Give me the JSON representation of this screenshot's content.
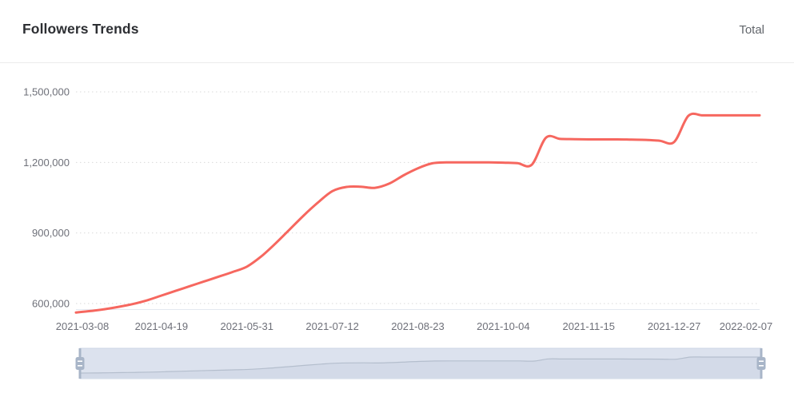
{
  "header": {
    "title": "Followers Trends",
    "right_label": "Total"
  },
  "chart_data": {
    "type": "line",
    "title": "Followers Trends",
    "series": [
      {
        "name": "Total",
        "color": "#f6675f",
        "smooth": true,
        "show_symbols": false,
        "values": [
          562000,
          568000,
          576000,
          586000,
          598000,
          614000,
          634000,
          654000,
          674000,
          694000,
          714000,
          734000,
          757000,
          800000,
          855000,
          915000,
          975000,
          1030000,
          1078000,
          1096000,
          1097000,
          1092000,
          1110000,
          1145000,
          1175000,
          1196000,
          1200000,
          1200000,
          1200000,
          1200000,
          1199000,
          1197000,
          1190000,
          1305000,
          1300000,
          1299000,
          1298000,
          1298000,
          1298000,
          1297000,
          1296000,
          1292000,
          1287000,
          1398000,
          1400000,
          1400000,
          1400000,
          1400000,
          1400000
        ]
      }
    ],
    "x": [
      "2021-03-08",
      "2021-03-15",
      "2021-03-22",
      "2021-03-29",
      "2021-04-05",
      "2021-04-12",
      "2021-04-19",
      "2021-04-26",
      "2021-05-03",
      "2021-05-10",
      "2021-05-17",
      "2021-05-24",
      "2021-05-31",
      "2021-06-07",
      "2021-06-14",
      "2021-06-21",
      "2021-06-28",
      "2021-07-05",
      "2021-07-12",
      "2021-07-19",
      "2021-07-26",
      "2021-08-02",
      "2021-08-09",
      "2021-08-16",
      "2021-08-23",
      "2021-08-30",
      "2021-09-06",
      "2021-09-13",
      "2021-09-20",
      "2021-09-27",
      "2021-10-04",
      "2021-10-11",
      "2021-10-18",
      "2021-10-25",
      "2021-11-01",
      "2021-11-08",
      "2021-11-15",
      "2021-11-22",
      "2021-11-29",
      "2021-12-06",
      "2021-12-13",
      "2021-12-20",
      "2021-12-27",
      "2022-01-03",
      "2022-01-10",
      "2022-01-17",
      "2022-01-24",
      "2022-01-31",
      "2022-02-07"
    ],
    "x_tick_labels": [
      "2021-03-08",
      "2021-04-19",
      "2021-05-31",
      "2021-07-12",
      "2021-08-23",
      "2021-10-04",
      "2021-11-15",
      "2021-12-27",
      "2022-02-07"
    ],
    "y_tick_labels": [
      "600,000",
      "900,000",
      "1,200,000",
      "1,500,000"
    ],
    "y_tick_values": [
      600000,
      900000,
      1200000,
      1500000
    ],
    "ylim": [
      560000,
      1500000
    ],
    "xlabel": "",
    "ylabel": "",
    "grid": "dotted-horizontal",
    "legend_position": "none",
    "colors": {
      "line": "#f6675f",
      "gridline": "#dadada",
      "axis_line": "#e4e8f0",
      "axis_text": "#6e7079",
      "slider_band_fill": "#dce2ee",
      "slider_shadow_fill": "#d3dae8",
      "slider_shadow_line": "#b4becd",
      "slider_handle": "#a8b5c8",
      "slider_border": "#ccd5e4"
    },
    "datazoom": {
      "start_label": "2021-03-08",
      "end_label": "2022-02-07"
    }
  }
}
